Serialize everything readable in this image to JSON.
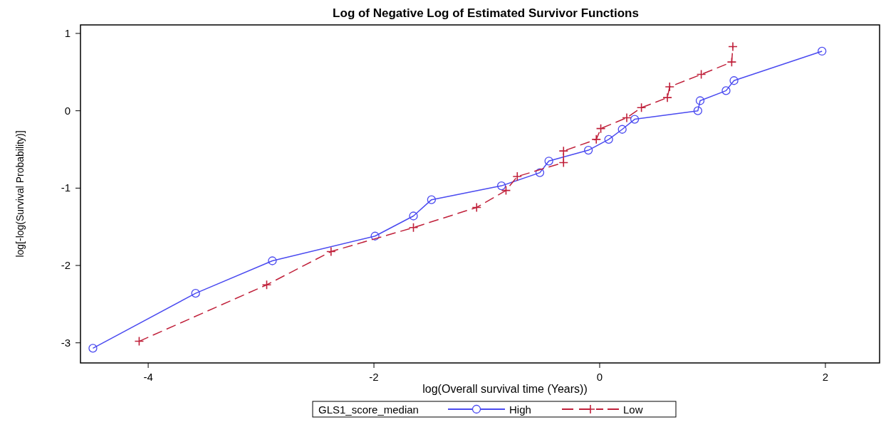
{
  "chart_data": {
    "type": "line",
    "title": "Log of Negative Log of Estimated Survivor Functions",
    "xlabel": "log(Overall survival time (Years))",
    "ylabel": "log[-log(Survival Probability)]",
    "legend_title": "GLS1_score_median",
    "legend": "bottom",
    "grid": false,
    "xlim": [
      -4.6,
      2.48
    ],
    "xticks": [
      -4,
      -2,
      0,
      2
    ],
    "ylim": [
      -3.26,
      1.11
    ],
    "yticks": [
      -3,
      -2,
      -1,
      0,
      1
    ],
    "series": [
      {
        "name": "High",
        "color": "#4a4af0",
        "marker": "circle",
        "line_style": "solid",
        "x": [
          -4.49,
          -3.58,
          -2.9,
          -1.99,
          -1.65,
          -1.49,
          -0.87,
          -0.53,
          -0.45,
          -0.1,
          0.08,
          0.2,
          0.31,
          0.87,
          0.89,
          1.12,
          1.19,
          1.97
        ],
        "values": [
          -3.07,
          -2.36,
          -1.94,
          -1.62,
          -1.36,
          -1.15,
          -0.97,
          -0.8,
          -0.65,
          -0.51,
          -0.37,
          -0.24,
          -0.11,
          0,
          0.13,
          0.26,
          0.39,
          0.77
        ]
      },
      {
        "name": "Low",
        "color": "#c0203a",
        "marker": "cross",
        "line_style": "dashed",
        "x": [
          -4.08,
          -2.95,
          -2.38,
          -1.65,
          -1.09,
          -0.83,
          -0.73,
          -0.32,
          -0.32,
          -0.03,
          0.01,
          0.24,
          0.37,
          0.6,
          0.62,
          0.9,
          1.17,
          1.18
        ],
        "values": [
          -2.98,
          -2.25,
          -1.82,
          -1.51,
          -1.25,
          -1.03,
          -0.85,
          -0.67,
          -0.52,
          -0.37,
          -0.23,
          -0.09,
          0.04,
          0.17,
          0.31,
          0.47,
          0.63,
          0.83
        ]
      }
    ]
  }
}
